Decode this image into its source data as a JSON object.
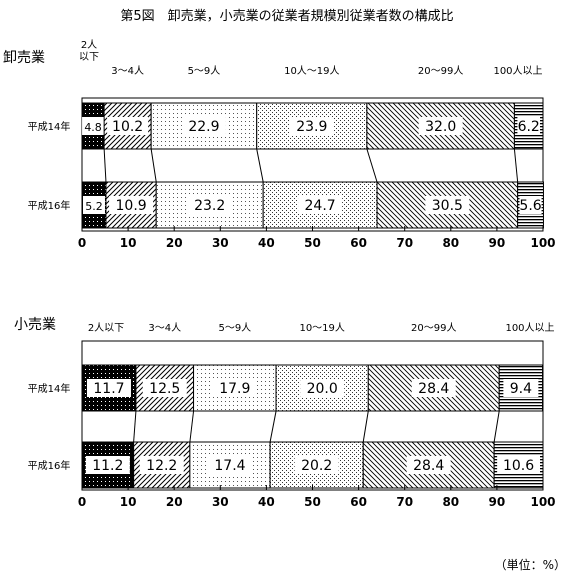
{
  "title": "第5図　卸売業，小売業の従業者規模別従業者数の構成比",
  "unit_note": "（単位：%）",
  "chart_data": [
    {
      "type": "bar",
      "orientation": "horizontal-stacked",
      "section_label": "卸売業",
      "categories": [
        "平成14年",
        "平成16年"
      ],
      "series": [
        {
          "name": "2人以下",
          "values": [
            4.8,
            5.2
          ]
        },
        {
          "name": "3～4人",
          "values": [
            10.2,
            10.9
          ]
        },
        {
          "name": "5～9人",
          "values": [
            22.9,
            23.2
          ]
        },
        {
          "name": "10人～19人",
          "values": [
            23.9,
            24.7
          ]
        },
        {
          "name": "20～99人",
          "values": [
            32.0,
            30.5
          ]
        },
        {
          "name": "100人以上",
          "values": [
            6.2,
            5.6
          ]
        }
      ],
      "legend_labels": [
        "2人\n以下",
        "3～4人",
        "5～9人",
        "10人～19人",
        "20～99人",
        "100人以上"
      ],
      "xlim": [
        0,
        100
      ],
      "xticks": [
        0,
        10,
        20,
        30,
        40,
        50,
        60,
        70,
        80,
        90,
        100
      ],
      "grid": false
    },
    {
      "type": "bar",
      "orientation": "horizontal-stacked",
      "section_label": "小売業",
      "categories": [
        "平成14年",
        "平成16年"
      ],
      "series": [
        {
          "name": "2人以下",
          "values": [
            11.7,
            11.2
          ]
        },
        {
          "name": "3～4人",
          "values": [
            12.5,
            12.2
          ]
        },
        {
          "name": "5～9人",
          "values": [
            17.9,
            17.4
          ]
        },
        {
          "name": "10～19人",
          "values": [
            20.0,
            20.2
          ]
        },
        {
          "name": "20～99人",
          "values": [
            28.4,
            28.4
          ]
        },
        {
          "name": "100人以上",
          "values": [
            9.4,
            10.6
          ]
        }
      ],
      "legend_labels": [
        "2人以下",
        "3～4人",
        "5～9人",
        "10～19人",
        "20～99人",
        "100人以上"
      ],
      "xlim": [
        0,
        100
      ],
      "xticks": [
        0,
        10,
        20,
        30,
        40,
        50,
        60,
        70,
        80,
        90,
        100
      ],
      "grid": false
    }
  ]
}
